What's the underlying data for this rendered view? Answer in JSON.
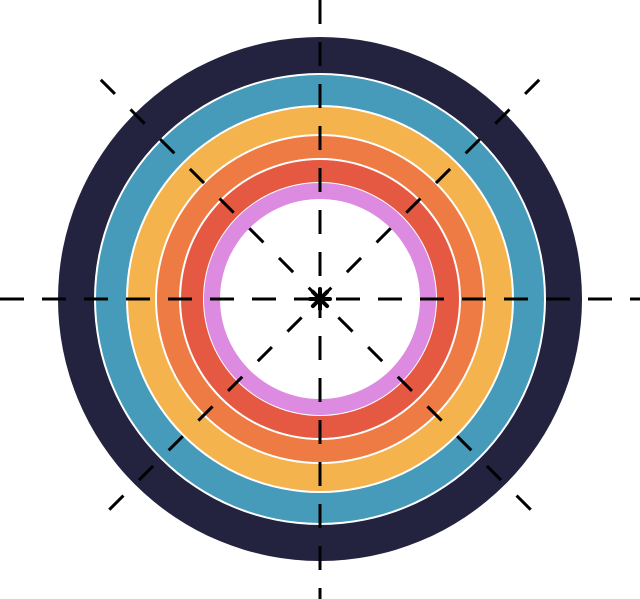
{
  "diagram": {
    "rings": [
      {
        "name": "outer-navy",
        "color": "#23223f"
      },
      {
        "name": "teal",
        "color": "#479bba"
      },
      {
        "name": "yellow",
        "color": "#f5b34d"
      },
      {
        "name": "orange",
        "color": "#ee7b43"
      },
      {
        "name": "red",
        "color": "#e55942"
      },
      {
        "name": "pink",
        "color": "#dc8be0"
      }
    ],
    "crosshair_color": "#000000",
    "background_color": "#ffffff"
  }
}
